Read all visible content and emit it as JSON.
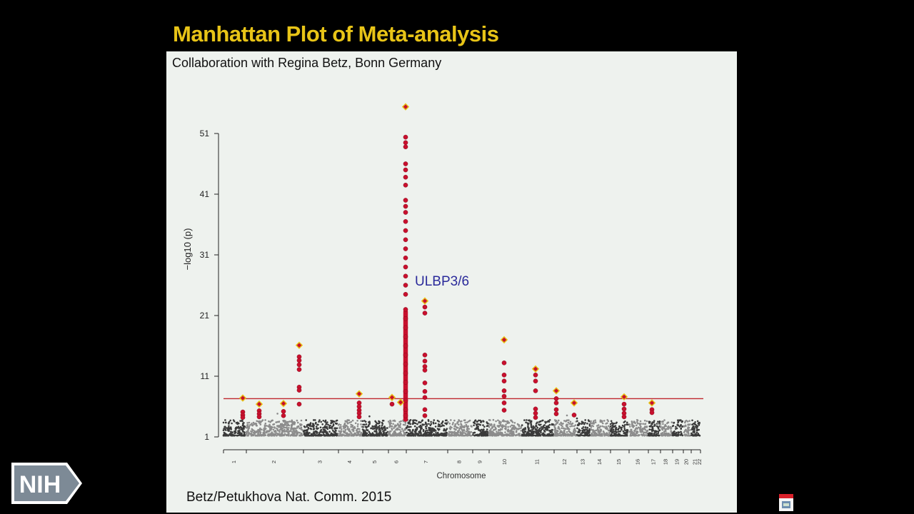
{
  "slide": {
    "title": "Manhattan Plot of Meta-analysis",
    "subtitle": "Collaboration with Regina Betz, Bonn Germany",
    "citation": "Betz/Petukhova Nat. Comm. 2015",
    "logo_text": "NIH"
  },
  "chart_data": {
    "type": "scatter",
    "subtype": "manhattan",
    "title": "",
    "xlabel": "Chromosome",
    "ylabel": "−log10 (p)",
    "yticks": [
      1,
      11,
      21,
      31,
      41,
      51
    ],
    "ylim": [
      1,
      57
    ],
    "significance_line": 7.3,
    "significance_color": "#c0272d",
    "hit_color": "#c8102e",
    "baseline_colors": [
      "#3a3a3a",
      "#8c8c8c"
    ],
    "chromosome_labels": [
      "1",
      "2",
      "3",
      "4",
      "5",
      "6",
      "7",
      "8",
      "9",
      "10",
      "11",
      "12",
      "13",
      "14",
      "15",
      "16",
      "17",
      "18",
      "19",
      "20",
      "21",
      "22"
    ],
    "annotation": {
      "text": "ULBP3/6",
      "chromosome": "6",
      "color": "#2a2a9a"
    },
    "peaks": [
      {
        "chromosome": "1",
        "lead": 7.4,
        "values": [
          5.1,
          4.6,
          4.2
        ]
      },
      {
        "chromosome": "1",
        "lead": 6.4,
        "values": [
          5.3,
          4.8,
          4.3
        ]
      },
      {
        "chromosome": "2",
        "lead": 6.5,
        "values": [
          5.2,
          4.5
        ]
      },
      {
        "chromosome": "2",
        "lead": 16.1,
        "values": [
          14.2,
          13.6,
          12.9,
          12.1,
          9.2,
          8.7,
          6.4
        ]
      },
      {
        "chromosome": "4",
        "lead": 8.1,
        "values": [
          6.6,
          6.0,
          5.4,
          4.9,
          4.3
        ]
      },
      {
        "chromosome": "5",
        "lead": 7.5,
        "values": [
          6.4
        ]
      },
      {
        "chromosome": "6",
        "lead": 6.7,
        "values": []
      },
      {
        "chromosome": "6",
        "lead": 55.4,
        "values": [
          50.4,
          49.5,
          48.8,
          46.0,
          45.0,
          43.8,
          42.5,
          40.0,
          39.0,
          38.0,
          36.5,
          35.0,
          33.5,
          32.0,
          30.5,
          29.0,
          27.5,
          26.0,
          24.5,
          22.0,
          20.5,
          19.0,
          17.5,
          16.0,
          14.5,
          13.0,
          11.5,
          10.0,
          8.5,
          7.0,
          5.5,
          4.5
        ]
      },
      {
        "chromosome": "6",
        "lead": 23.4,
        "values": [
          22.4,
          21.4,
          14.5,
          13.5,
          12.6,
          12.0,
          9.9,
          8.5,
          7.5,
          5.5,
          4.5
        ]
      },
      {
        "chromosome": "10",
        "lead": 17.0,
        "values": [
          13.2,
          11.2,
          10.2,
          8.6,
          7.7,
          6.6,
          5.4
        ]
      },
      {
        "chromosome": "11",
        "lead": 12.2,
        "values": [
          11.2,
          10.2,
          8.6,
          5.6,
          4.9,
          4.2
        ]
      },
      {
        "chromosome": "12",
        "lead": 8.6,
        "values": [
          7.3,
          6.6,
          5.5,
          4.8
        ]
      },
      {
        "chromosome": "13",
        "lead": 6.6,
        "values": [
          4.6
        ]
      },
      {
        "chromosome": "16",
        "lead": 7.6,
        "values": [
          6.4,
          5.6,
          4.9,
          4.3
        ]
      },
      {
        "chromosome": "18",
        "lead": 6.6,
        "values": [
          5.5,
          5.0
        ]
      }
    ]
  }
}
